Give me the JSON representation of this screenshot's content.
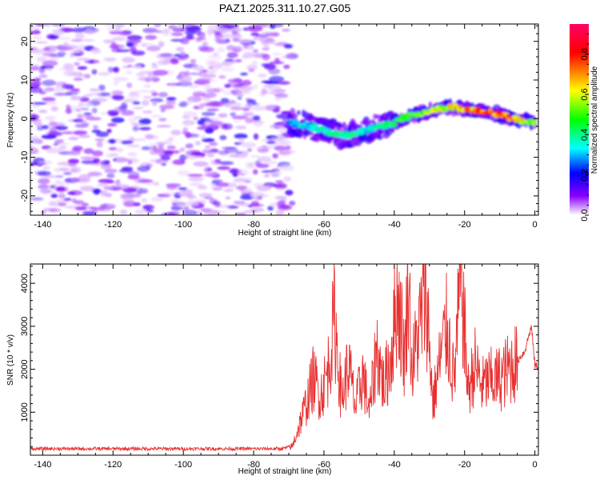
{
  "title": "PAZ1.2025.311.10.27.G05",
  "chart_data": [
    {
      "type": "heatmap",
      "name": "spectrogram",
      "xlabel": "Height of straight line (km)",
      "ylabel": "Frequency (Hz)",
      "xlim": [
        -143.5,
        1
      ],
      "ylim": [
        -25,
        24.5
      ],
      "xticks": [
        -140,
        -120,
        -100,
        -80,
        -60,
        -40,
        -20,
        0
      ],
      "yticks": [
        20,
        10,
        0,
        -10,
        -20
      ],
      "xtick_labels": [
        "-140",
        "-120",
        "-100",
        "-80",
        "-60",
        "-40",
        "-20",
        "0"
      ],
      "ytick_labels": [
        "20",
        "10",
        "0",
        "-10",
        "-20"
      ],
      "noise_region_x": [
        -143.5,
        -69
      ],
      "signal_ridge": {
        "x": [
          -70,
          -66,
          -62,
          -58,
          -55,
          -52,
          -48,
          -44,
          -40,
          -36,
          -32,
          -28,
          -24,
          -20,
          -16,
          -12,
          -8,
          -4,
          0
        ],
        "y": [
          -1.0,
          -1.5,
          -2.5,
          -3.5,
          -4.5,
          -4.0,
          -3.0,
          -2.0,
          -1.0,
          0.5,
          1.5,
          2.5,
          3.0,
          2.5,
          2.0,
          1.5,
          0.5,
          -0.5,
          -1.0
        ],
        "amplitude": [
          0.35,
          0.4,
          0.4,
          0.45,
          0.45,
          0.45,
          0.4,
          0.45,
          0.5,
          0.55,
          0.6,
          0.65,
          0.7,
          0.8,
          0.85,
          0.9,
          0.85,
          0.75,
          0.6
        ]
      },
      "colorbar": {
        "label": "Normalized spectral amplitude",
        "range": [
          0,
          0.95
        ],
        "ticks": [
          0.0,
          0.2,
          0.4,
          0.6,
          0.8
        ],
        "tick_labels": [
          "0.0",
          "0.2",
          "0.4",
          "0.6",
          "0.8"
        ],
        "colors": [
          "#ffffff",
          "#8800ff",
          "#0000ff",
          "#00ffff",
          "#00ff00",
          "#ffff00",
          "#ff0000",
          "#ff0066"
        ]
      }
    },
    {
      "type": "line",
      "name": "snr",
      "xlabel": "Height of straight line (km)",
      "ylabel": "SNR (10 * v/v)",
      "xlim": [
        -143.5,
        1
      ],
      "ylim": [
        0,
        4450
      ],
      "xticks": [
        -140,
        -120,
        -100,
        -80,
        -60,
        -40,
        -20,
        0
      ],
      "yticks": [
        1000,
        2000,
        3000,
        4000
      ],
      "xtick_labels": [
        "-140",
        "-120",
        "-100",
        "-80",
        "-60",
        "-40",
        "-20",
        "0"
      ],
      "ytick_labels": [
        "1000",
        "2000",
        "3000",
        "4000"
      ],
      "line_color": "#e83030",
      "series": [
        {
          "name": "SNR",
          "x": [
            -143.5,
            -130,
            -120,
            -110,
            -100,
            -90,
            -80,
            -72,
            -69,
            -67,
            -65,
            -63,
            -61,
            -59,
            -57,
            -55,
            -53,
            -51,
            -49,
            -47,
            -45,
            -43,
            -41,
            -39,
            -37,
            -36,
            -35,
            -33,
            -31,
            -29,
            -27,
            -25,
            -23,
            -21,
            -19,
            -17,
            -15,
            -13,
            -11,
            -9,
            -7,
            -5,
            -3,
            -1,
            0,
            1
          ],
          "y": [
            150,
            150,
            150,
            150,
            150,
            150,
            150,
            150,
            200,
            700,
            1200,
            1800,
            1400,
            1900,
            3200,
            1300,
            2100,
            1100,
            1900,
            1000,
            2500,
            1600,
            2300,
            3800,
            2200,
            4450,
            2000,
            2900,
            3900,
            1200,
            2200,
            3000,
            1700,
            4200,
            1500,
            2100,
            1600,
            1750,
            1750,
            1850,
            2050,
            2200,
            2400,
            3000,
            2100,
            2050
          ]
        }
      ]
    }
  ]
}
